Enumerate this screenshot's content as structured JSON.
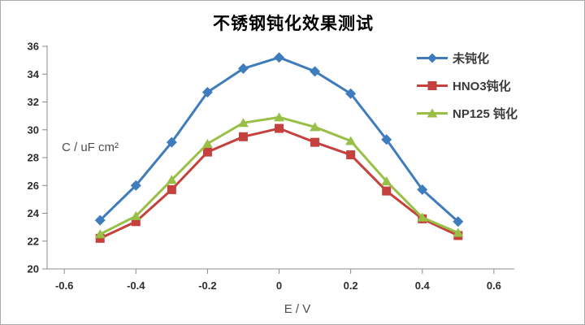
{
  "chart_data": {
    "type": "line",
    "title": "不锈钢钝化效果测试",
    "xlabel": "E / V",
    "ylabel": "C / uF cm²",
    "x": [
      -0.5,
      -0.4,
      -0.3,
      -0.2,
      -0.1,
      0,
      0.1,
      0.2,
      0.3,
      0.4,
      0.5
    ],
    "series": [
      {
        "name": "未钝化",
        "marker": "diamond",
        "color": "#3e7cbe",
        "values": [
          23.5,
          26.0,
          29.1,
          32.7,
          34.4,
          35.2,
          34.2,
          32.6,
          29.3,
          25.7,
          23.4
        ]
      },
      {
        "name": "HNO3钝化",
        "marker": "square",
        "color": "#c4413d",
        "values": [
          22.2,
          23.4,
          25.7,
          28.4,
          29.5,
          30.1,
          29.1,
          28.2,
          25.6,
          23.6,
          22.4
        ]
      },
      {
        "name": "NP125 钝化",
        "marker": "triangle",
        "color": "#99bf47",
        "values": [
          22.5,
          23.8,
          26.4,
          29.0,
          30.5,
          30.9,
          30.2,
          29.2,
          26.3,
          23.7,
          22.6
        ]
      }
    ],
    "xlim": [
      -0.648,
      0.657
    ],
    "ylim": [
      20,
      36
    ],
    "x_ticks": [
      -0.6,
      -0.4,
      -0.2,
      0,
      0.2,
      0.4,
      0.6
    ],
    "x_tick_labels": [
      "-0.6",
      "-0.4",
      "-0.2",
      "0",
      "0.2",
      "0.4",
      "0.6"
    ],
    "y_ticks": [
      20,
      22,
      24,
      26,
      28,
      30,
      32,
      34,
      36
    ],
    "y_tick_labels": [
      "20",
      "22",
      "24",
      "26",
      "28",
      "30",
      "32",
      "34",
      "36"
    ],
    "grid": false,
    "legend_position": "top-right",
    "axis_color": "#8c8c8c",
    "tick_label_color": "#2e2e2e"
  }
}
